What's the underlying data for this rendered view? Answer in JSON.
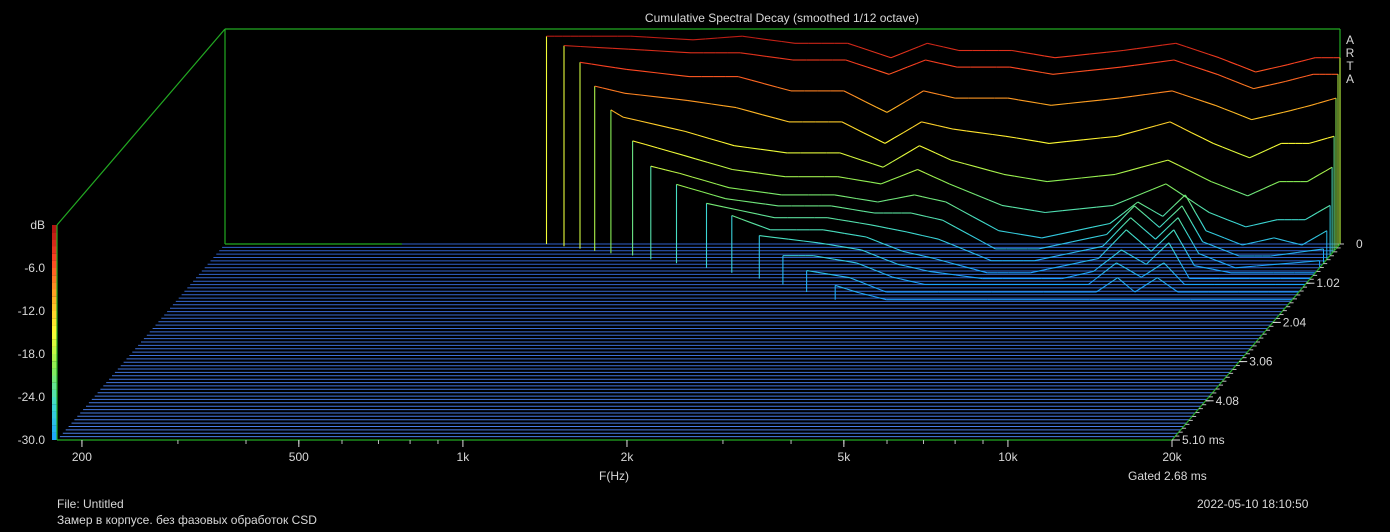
{
  "chart_data": {
    "type": "waterfall",
    "title": "Cumulative Spectral Decay (smoothed 1/12 octave)",
    "xlabel": "F(Hz)",
    "xscale": "log",
    "xlim": [
      180,
      20000
    ],
    "x_ticks": [
      200,
      500,
      1000,
      2000,
      5000,
      10000,
      20000
    ],
    "x_tick_labels": [
      "200",
      "500",
      "1k",
      "2k",
      "5k",
      "10k",
      "20k"
    ],
    "zlabel": "dB",
    "zlim": [
      -30,
      0
    ],
    "z_ticks": [
      0,
      -6,
      -12,
      -18,
      -24,
      -30
    ],
    "z_tick_labels": [
      "dB",
      "-6.0",
      "-12.0",
      "-18.0",
      "-24.0",
      "-30.0"
    ],
    "zero_label": "0",
    "time_unit": "ms",
    "time_ticks": [
      1.02,
      2.04,
      3.06,
      4.08,
      5.1
    ],
    "time_tick_labels": [
      "1.02",
      "2.04",
      "3.06",
      "4.08",
      "5.10 ms"
    ],
    "gate_label": "Gated 2.68 ms",
    "brand": "ARTA",
    "colormap": [
      "#1aa0ff",
      "#3fdcd0",
      "#88ee55",
      "#ffff33",
      "#ffaa22",
      "#ff4422",
      "#aa1010"
    ],
    "slice_color_floor": "#4a7fe6",
    "frame_color": "#22aa22",
    "slices": [
      {
        "t": 0.0,
        "onset": 700,
        "points": [
          [
            700,
            -1
          ],
          [
            800,
            -1
          ],
          [
            1000,
            -1
          ],
          [
            1300,
            -1.5
          ],
          [
            1600,
            -1
          ],
          [
            2000,
            -2
          ],
          [
            2500,
            -2
          ],
          [
            3000,
            -4
          ],
          [
            3500,
            -2
          ],
          [
            4000,
            -3
          ],
          [
            5000,
            -3
          ],
          [
            6000,
            -4
          ],
          [
            8000,
            -3
          ],
          [
            10000,
            -2
          ],
          [
            12000,
            -4
          ],
          [
            14000,
            -6
          ],
          [
            16000,
            -5
          ],
          [
            18000,
            -4
          ],
          [
            20000,
            -4
          ]
        ]
      },
      {
        "t": 0.06,
        "onset": 760,
        "points": [
          [
            760,
            -2
          ],
          [
            1000,
            -2.5
          ],
          [
            1300,
            -3
          ],
          [
            1600,
            -3
          ],
          [
            2000,
            -4
          ],
          [
            2500,
            -4
          ],
          [
            3000,
            -6
          ],
          [
            3500,
            -4
          ],
          [
            4000,
            -5
          ],
          [
            5000,
            -5
          ],
          [
            6000,
            -6
          ],
          [
            8000,
            -5
          ],
          [
            10000,
            -4
          ],
          [
            12000,
            -6
          ],
          [
            14000,
            -8
          ],
          [
            16000,
            -7
          ],
          [
            18000,
            -6
          ],
          [
            20000,
            -6
          ]
        ]
      },
      {
        "t": 0.12,
        "onset": 820,
        "points": [
          [
            820,
            -4
          ],
          [
            1000,
            -5
          ],
          [
            1300,
            -6
          ],
          [
            1600,
            -6
          ],
          [
            2000,
            -8
          ],
          [
            2500,
            -8
          ],
          [
            3000,
            -11
          ],
          [
            3500,
            -8
          ],
          [
            4000,
            -9
          ],
          [
            5000,
            -9
          ],
          [
            6000,
            -10
          ],
          [
            8000,
            -9
          ],
          [
            10000,
            -8
          ],
          [
            12000,
            -10
          ],
          [
            14000,
            -12
          ],
          [
            16000,
            -11
          ],
          [
            18000,
            -10
          ],
          [
            20000,
            -9
          ]
        ]
      },
      {
        "t": 0.18,
        "onset": 880,
        "points": [
          [
            880,
            -7
          ],
          [
            1000,
            -8
          ],
          [
            1300,
            -9
          ],
          [
            1600,
            -10
          ],
          [
            2000,
            -12
          ],
          [
            2500,
            -12
          ],
          [
            3000,
            -15
          ],
          [
            3500,
            -12
          ],
          [
            4000,
            -13
          ],
          [
            5000,
            -14
          ],
          [
            6000,
            -15
          ],
          [
            8000,
            -14
          ],
          [
            10000,
            -12
          ],
          [
            12000,
            -15
          ],
          [
            14000,
            -17
          ],
          [
            16000,
            -15
          ],
          [
            18000,
            -15
          ],
          [
            20000,
            -14
          ]
        ]
      },
      {
        "t": 0.24,
        "onset": 950,
        "points": [
          [
            950,
            -10
          ],
          [
            1000,
            -11
          ],
          [
            1300,
            -13
          ],
          [
            1600,
            -15
          ],
          [
            2000,
            -16
          ],
          [
            2500,
            -16
          ],
          [
            3000,
            -18
          ],
          [
            3500,
            -15
          ],
          [
            4000,
            -17
          ],
          [
            5000,
            -19
          ],
          [
            6000,
            -20
          ],
          [
            8000,
            -19
          ],
          [
            10000,
            -17
          ],
          [
            12000,
            -20
          ],
          [
            14000,
            -22
          ],
          [
            16000,
            -20
          ],
          [
            18000,
            -20
          ],
          [
            20000,
            -18
          ]
        ]
      },
      {
        "t": 0.3,
        "onset": 1050,
        "points": [
          [
            1050,
            -14
          ],
          [
            1300,
            -16
          ],
          [
            1600,
            -18
          ],
          [
            2000,
            -19
          ],
          [
            2500,
            -19
          ],
          [
            3000,
            -20
          ],
          [
            3500,
            -18
          ],
          [
            4000,
            -20
          ],
          [
            5000,
            -23
          ],
          [
            6000,
            -24
          ],
          [
            8000,
            -23
          ],
          [
            10000,
            -20
          ],
          [
            12000,
            -24
          ],
          [
            14000,
            -26
          ],
          [
            16000,
            -25
          ],
          [
            18000,
            -25
          ],
          [
            20000,
            -23
          ]
        ]
      },
      {
        "t": 0.4,
        "onset": 1150,
        "points": [
          [
            1150,
            -17
          ],
          [
            1300,
            -18
          ],
          [
            1600,
            -20
          ],
          [
            2000,
            -21
          ],
          [
            2500,
            -21
          ],
          [
            3000,
            -22
          ],
          [
            3500,
            -21
          ],
          [
            4000,
            -22
          ],
          [
            5000,
            -26
          ],
          [
            6000,
            -27
          ],
          [
            8000,
            -25
          ],
          [
            9000,
            -22
          ],
          [
            10000,
            -24
          ],
          [
            11000,
            -21
          ],
          [
            12000,
            -26
          ],
          [
            14000,
            -28
          ],
          [
            16000,
            -27
          ],
          [
            18000,
            -28
          ],
          [
            20000,
            -26
          ]
        ]
      },
      {
        "t": 0.5,
        "onset": 1300,
        "points": [
          [
            1300,
            -19
          ],
          [
            1600,
            -21
          ],
          [
            2000,
            -22
          ],
          [
            2500,
            -22
          ],
          [
            3000,
            -23
          ],
          [
            3500,
            -23
          ],
          [
            4000,
            -24
          ],
          [
            5000,
            -28
          ],
          [
            6000,
            -28
          ],
          [
            8000,
            -26
          ],
          [
            9000,
            -22
          ],
          [
            10000,
            -25
          ],
          [
            11000,
            -22
          ],
          [
            12000,
            -27
          ],
          [
            14000,
            -29
          ],
          [
            16000,
            -29
          ],
          [
            20000,
            -28
          ]
        ]
      },
      {
        "t": 0.62,
        "onset": 1500,
        "points": [
          [
            1500,
            -21
          ],
          [
            2000,
            -23
          ],
          [
            2500,
            -23
          ],
          [
            3000,
            -24
          ],
          [
            3500,
            -25
          ],
          [
            4000,
            -26
          ],
          [
            5000,
            -29
          ],
          [
            6000,
            -29
          ],
          [
            8000,
            -27
          ],
          [
            9000,
            -23
          ],
          [
            10000,
            -26
          ],
          [
            11000,
            -23
          ],
          [
            12000,
            -28
          ],
          [
            14000,
            -30
          ],
          [
            20000,
            -29
          ]
        ]
      },
      {
        "t": 0.75,
        "onset": 1700,
        "points": [
          [
            1700,
            -22
          ],
          [
            2000,
            -24
          ],
          [
            2500,
            -24
          ],
          [
            3000,
            -25
          ],
          [
            3500,
            -27
          ],
          [
            4000,
            -28
          ],
          [
            5000,
            -30
          ],
          [
            6000,
            -30
          ],
          [
            8000,
            -28
          ],
          [
            9000,
            -24
          ],
          [
            10000,
            -27
          ],
          [
            11000,
            -24
          ],
          [
            12000,
            -29
          ],
          [
            14000,
            -30
          ],
          [
            20000,
            -30
          ]
        ]
      },
      {
        "t": 0.9,
        "onset": 1950,
        "points": [
          [
            1950,
            -24
          ],
          [
            2500,
            -25
          ],
          [
            3000,
            -26
          ],
          [
            3500,
            -28
          ],
          [
            4000,
            -29
          ],
          [
            5000,
            -30
          ],
          [
            7000,
            -30
          ],
          [
            8000,
            -29
          ],
          [
            9000,
            -26
          ],
          [
            10000,
            -28
          ],
          [
            11000,
            -25
          ],
          [
            12000,
            -30
          ],
          [
            20000,
            -30
          ]
        ]
      },
      {
        "t": 1.05,
        "onset": 2200,
        "points": [
          [
            2200,
            -26
          ],
          [
            2500,
            -26
          ],
          [
            3000,
            -27
          ],
          [
            3500,
            -29
          ],
          [
            4000,
            -30
          ],
          [
            8000,
            -30
          ],
          [
            9000,
            -27
          ],
          [
            10000,
            -29
          ],
          [
            11000,
            -27
          ],
          [
            12000,
            -30
          ],
          [
            20000,
            -30
          ]
        ]
      },
      {
        "t": 1.25,
        "onset": 2500,
        "points": [
          [
            2500,
            -27
          ],
          [
            3000,
            -28
          ],
          [
            3500,
            -30
          ],
          [
            8500,
            -30
          ],
          [
            9300,
            -28
          ],
          [
            10000,
            -30
          ],
          [
            11000,
            -28
          ],
          [
            12000,
            -30
          ],
          [
            20000,
            -30
          ]
        ]
      },
      {
        "t": 1.45,
        "onset": 2900,
        "points": [
          [
            2900,
            -28
          ],
          [
            3200,
            -29
          ],
          [
            3600,
            -30
          ],
          [
            20000,
            -30
          ]
        ]
      }
    ]
  },
  "footer": {
    "file": "File: Untitled",
    "note": "Замер в корпусе. без фазовых обработок CSD",
    "datetime": "2022-05-10  18:10:50"
  }
}
